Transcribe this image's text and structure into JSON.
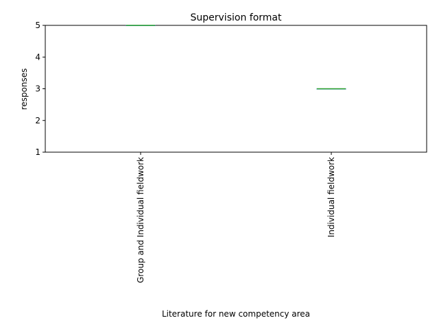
{
  "chart_data": {
    "type": "box",
    "title": "Supervision format",
    "xlabel": "Literature for new competency area",
    "ylabel": "responses",
    "categories": [
      "Group and Individual fieldwork",
      "Individual fieldwork"
    ],
    "series": [
      {
        "values": [
          {
            "min": 5,
            "q1": 5,
            "median": 5,
            "q3": 5,
            "max": 5
          },
          {
            "min": 3,
            "q1": 3,
            "median": 3,
            "q3": 3,
            "max": 3
          }
        ]
      }
    ],
    "yticks": [
      1,
      2,
      3,
      4,
      5
    ],
    "ylim": [
      1,
      5
    ],
    "grid": false,
    "colors": {
      "box": "#1f77b4",
      "median": "#2ca02c",
      "axis": "#000000"
    }
  }
}
